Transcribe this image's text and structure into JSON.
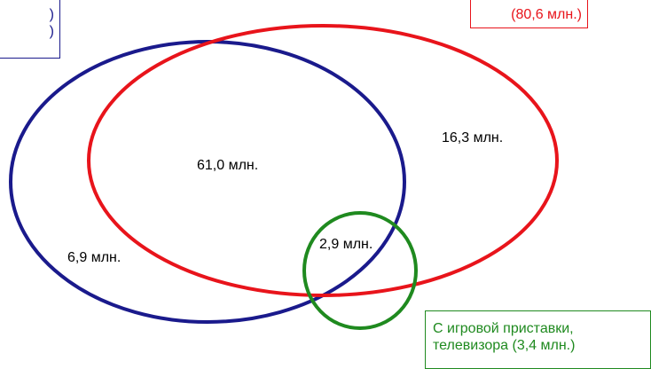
{
  "labels": {
    "blue_box_lines": [
      ")",
      ")"
    ],
    "red_box": "(80,6 млн.)",
    "green_box_lines": [
      "С игровой приставки,",
      "телевизора (3,4 млн.)"
    ]
  },
  "regions": {
    "intersection_blue_red": "61,0 млн.",
    "red_only": "16,3 млн.",
    "blue_only": "6,9 млн.",
    "green_overlap": "2,9 млн."
  },
  "colors": {
    "blue_set": "#1a1a8c",
    "red_set": "#e8141b",
    "green_set": "#1f8a1f"
  }
}
